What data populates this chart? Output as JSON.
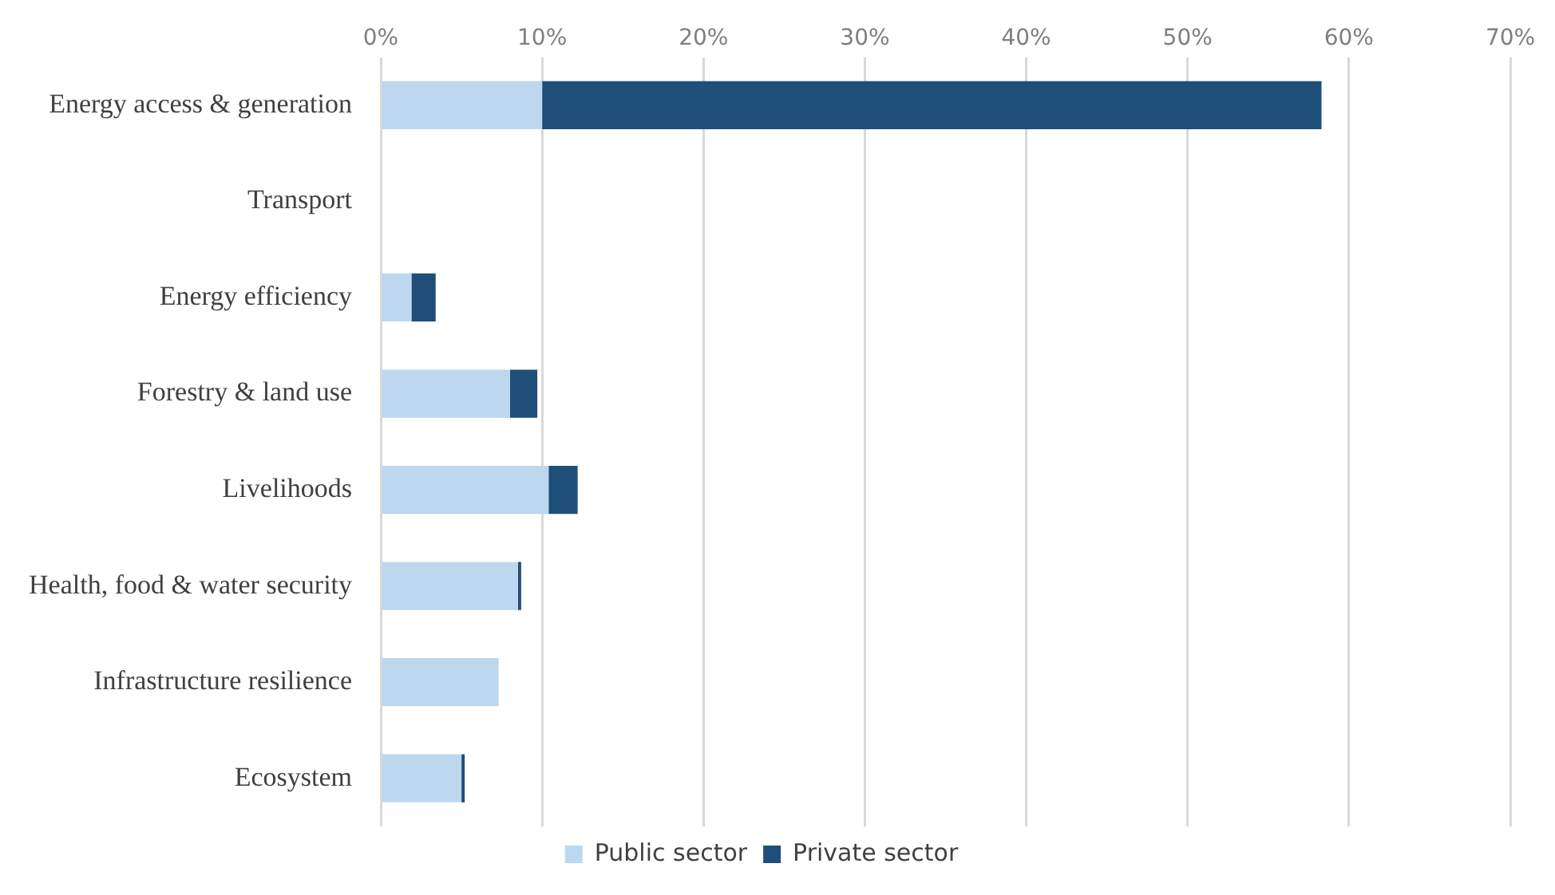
{
  "chart_data": {
    "type": "bar",
    "orientation": "horizontal",
    "stacked": true,
    "categories": [
      "Energy access & generation",
      "Transport",
      "Energy efficiency",
      "Forestry & land use",
      "Livelihoods",
      "Health, food & water security",
      "Infrastructure resilience",
      "Ecosystem"
    ],
    "series": [
      {
        "name": "Public sector",
        "color": "#bdd7ee",
        "values": [
          10,
          0,
          1.9,
          8,
          10.4,
          8.5,
          7.3,
          5
        ]
      },
      {
        "name": "Private sector",
        "color": "#1f4e79",
        "values": [
          48.3,
          0,
          1.5,
          1.7,
          1.8,
          0.2,
          0,
          0.2
        ]
      }
    ],
    "xlim": [
      0,
      70
    ],
    "xticks": [
      {
        "value": 0,
        "label": "0%"
      },
      {
        "value": 10,
        "label": "10%"
      },
      {
        "value": 20,
        "label": "20%"
      },
      {
        "value": 30,
        "label": "30%"
      },
      {
        "value": 40,
        "label": "40%"
      },
      {
        "value": 50,
        "label": "50%"
      },
      {
        "value": 60,
        "label": "60%"
      },
      {
        "value": 70,
        "label": "70%"
      }
    ],
    "grid": "x",
    "legend": "bottom"
  }
}
